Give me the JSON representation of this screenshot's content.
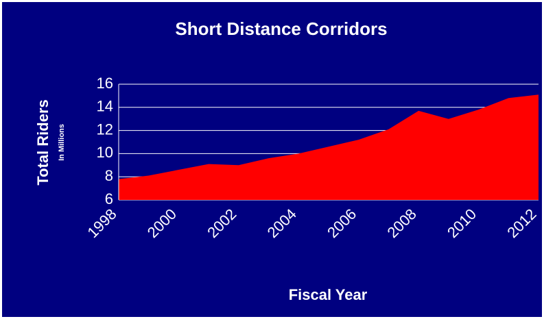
{
  "chart_data": {
    "type": "area",
    "title": "Short Distance Corridors",
    "y_label": "Total Riders",
    "y_sublabel": "In Millions",
    "x_label": "Fiscal Year",
    "categories": [
      "1998",
      null,
      "2000",
      null,
      "2002",
      null,
      "2004",
      null,
      "2006",
      null,
      "2008",
      null,
      "2010",
      null,
      "2012"
    ],
    "values": [
      7.8,
      8.1,
      8.6,
      9.1,
      9.0,
      9.6,
      10.0,
      10.6,
      11.2,
      12.1,
      13.7,
      13.0,
      13.8,
      14.8,
      15.1
    ],
    "color": "#ff0000",
    "ylim": [
      6,
      16
    ],
    "yticks": [
      6,
      8,
      10,
      12,
      14,
      16
    ],
    "grid": true
  }
}
